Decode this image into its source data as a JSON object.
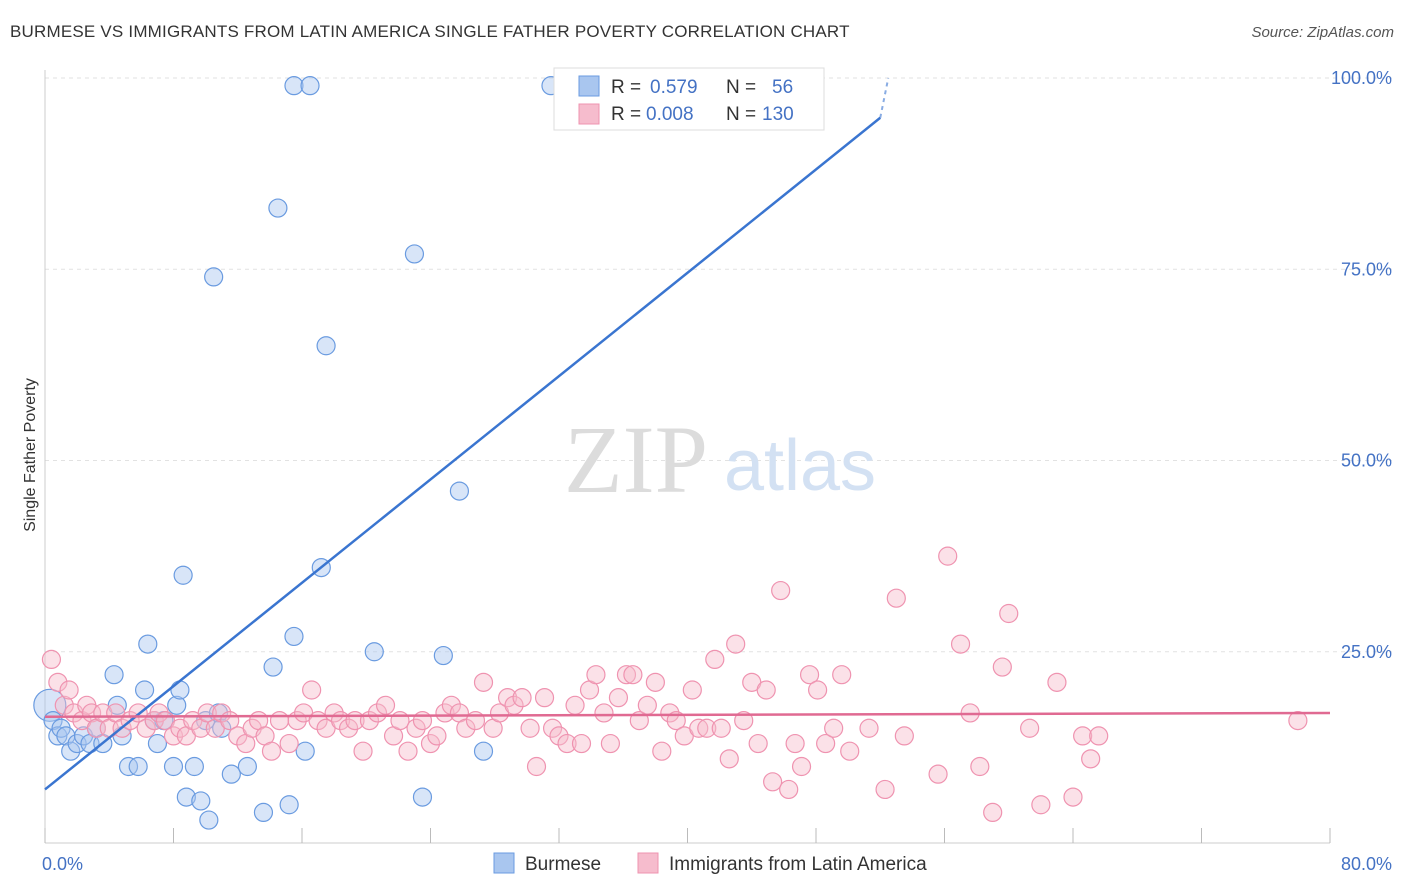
{
  "title": "BURMESE VS IMMIGRANTS FROM LATIN AMERICA SINGLE FATHER POVERTY CORRELATION CHART",
  "source": "Source: ZipAtlas.com",
  "watermark": {
    "zip": "ZIP",
    "atlas": "atlas"
  },
  "chart_data": {
    "type": "scatter",
    "ylabel": "Single Father Poverty",
    "xlim": [
      0,
      80
    ],
    "ylim": [
      0,
      105
    ],
    "x_ticks": [
      {
        "value": 0,
        "label": "0.0%"
      },
      {
        "value": 80,
        "label": "80.0%"
      }
    ],
    "x_minor_ticks": [
      0,
      8,
      16,
      24,
      32,
      40,
      48,
      56,
      64,
      72,
      80
    ],
    "y_ticks": [
      {
        "value": 25,
        "label": "25.0%"
      },
      {
        "value": 50,
        "label": "50.0%"
      },
      {
        "value": 75,
        "label": "75.0%"
      },
      {
        "value": 100,
        "label": "100.0%"
      }
    ],
    "grid": true,
    "legend_position": "bottom-center",
    "stats": [
      {
        "r_label": "R =",
        "r_value": "0.579",
        "n_label": "N =",
        "n_value": "56"
      },
      {
        "r_label": "R =",
        "r_value": "0.008",
        "n_label": "N =",
        "n_value": "130"
      }
    ],
    "series": [
      {
        "name": "Burmese",
        "color": "#6a9be0",
        "fill": "#a9c6ef",
        "trend": {
          "x0": 0,
          "y0": 7.0,
          "x1": 52,
          "y1": 94.8,
          "dash_to_x": 52.5,
          "dash_to_y": 100
        },
        "points": [
          [
            0.3,
            18
          ],
          [
            0.5,
            16
          ],
          [
            0.8,
            14
          ],
          [
            1.0,
            15
          ],
          [
            1.3,
            14
          ],
          [
            1.6,
            12
          ],
          [
            2.0,
            13
          ],
          [
            2.4,
            14
          ],
          [
            2.8,
            13
          ],
          [
            3.2,
            15
          ],
          [
            3.6,
            13
          ],
          [
            4.3,
            22
          ],
          [
            4.5,
            18
          ],
          [
            4.8,
            14
          ],
          [
            5.2,
            10
          ],
          [
            5.8,
            10
          ],
          [
            6.2,
            20
          ],
          [
            6.4,
            26
          ],
          [
            6.8,
            16
          ],
          [
            7.0,
            13
          ],
          [
            7.4,
            16
          ],
          [
            8.0,
            10
          ],
          [
            8.2,
            18
          ],
          [
            8.4,
            20
          ],
          [
            8.6,
            35
          ],
          [
            8.8,
            6
          ],
          [
            9.3,
            10
          ],
          [
            9.7,
            5.5
          ],
          [
            10.0,
            16
          ],
          [
            10.2,
            3
          ],
          [
            10.5,
            74
          ],
          [
            10.8,
            17
          ],
          [
            11.0,
            15
          ],
          [
            11.6,
            9
          ],
          [
            12.6,
            10
          ],
          [
            13.6,
            4
          ],
          [
            14.2,
            23
          ],
          [
            14.5,
            83
          ],
          [
            15.2,
            5
          ],
          [
            15.5,
            99
          ],
          [
            15.5,
            27
          ],
          [
            16.2,
            12
          ],
          [
            16.5,
            99
          ],
          [
            17.2,
            36
          ],
          [
            17.5,
            65
          ],
          [
            20.5,
            25
          ],
          [
            23.0,
            77
          ],
          [
            23.5,
            6
          ],
          [
            24.8,
            24.5
          ],
          [
            25.8,
            46
          ],
          [
            27.3,
            12
          ],
          [
            31.5,
            99
          ],
          [
            46.5,
            99
          ]
        ]
      },
      {
        "name": "Immigrants from Latin America",
        "color": "#ef93b0",
        "fill": "#f6bccd",
        "trend": {
          "x0": 0,
          "y0": 16.5,
          "x1": 80,
          "y1": 17.0
        },
        "points": [
          [
            0.4,
            24
          ],
          [
            0.8,
            21
          ],
          [
            1.2,
            18
          ],
          [
            1.5,
            20
          ],
          [
            1.8,
            17
          ],
          [
            2.3,
            16
          ],
          [
            2.6,
            18
          ],
          [
            2.9,
            17
          ],
          [
            3.2,
            15
          ],
          [
            3.6,
            17
          ],
          [
            4.0,
            15
          ],
          [
            4.4,
            17
          ],
          [
            4.8,
            15
          ],
          [
            5.3,
            16
          ],
          [
            5.8,
            17
          ],
          [
            6.3,
            15
          ],
          [
            6.8,
            16
          ],
          [
            7.1,
            17
          ],
          [
            7.5,
            16
          ],
          [
            8.0,
            14
          ],
          [
            8.4,
            15
          ],
          [
            8.8,
            14
          ],
          [
            9.2,
            16
          ],
          [
            9.7,
            15
          ],
          [
            10.1,
            17
          ],
          [
            10.6,
            15
          ],
          [
            11.0,
            17
          ],
          [
            11.5,
            16
          ],
          [
            12.0,
            14
          ],
          [
            12.5,
            13
          ],
          [
            12.9,
            15
          ],
          [
            13.3,
            16
          ],
          [
            13.7,
            14
          ],
          [
            14.1,
            12
          ],
          [
            14.6,
            16
          ],
          [
            15.2,
            13
          ],
          [
            15.7,
            16
          ],
          [
            16.1,
            17
          ],
          [
            16.6,
            20
          ],
          [
            17.0,
            16
          ],
          [
            17.5,
            15
          ],
          [
            18.0,
            17
          ],
          [
            18.4,
            16
          ],
          [
            18.9,
            15
          ],
          [
            19.3,
            16
          ],
          [
            19.8,
            12
          ],
          [
            20.2,
            16
          ],
          [
            20.7,
            17
          ],
          [
            21.2,
            18
          ],
          [
            21.7,
            14
          ],
          [
            22.1,
            16
          ],
          [
            22.6,
            12
          ],
          [
            23.1,
            15
          ],
          [
            23.5,
            16
          ],
          [
            24.0,
            13
          ],
          [
            24.4,
            14
          ],
          [
            24.9,
            17
          ],
          [
            25.3,
            18
          ],
          [
            25.8,
            17
          ],
          [
            26.2,
            15
          ],
          [
            26.8,
            16
          ],
          [
            27.3,
            21
          ],
          [
            27.9,
            15
          ],
          [
            28.3,
            17
          ],
          [
            28.8,
            19
          ],
          [
            29.2,
            18
          ],
          [
            29.7,
            19
          ],
          [
            30.2,
            15
          ],
          [
            30.6,
            10
          ],
          [
            31.1,
            19
          ],
          [
            31.6,
            15
          ],
          [
            32.0,
            14
          ],
          [
            32.5,
            13
          ],
          [
            33.0,
            18
          ],
          [
            33.4,
            13
          ],
          [
            33.9,
            20
          ],
          [
            34.3,
            22
          ],
          [
            34.8,
            17
          ],
          [
            35.2,
            13
          ],
          [
            35.7,
            19
          ],
          [
            36.2,
            22
          ],
          [
            36.6,
            22
          ],
          [
            37.0,
            16
          ],
          [
            37.5,
            18
          ],
          [
            38.0,
            21
          ],
          [
            38.4,
            12
          ],
          [
            38.9,
            17
          ],
          [
            39.3,
            16
          ],
          [
            39.8,
            14
          ],
          [
            40.3,
            20
          ],
          [
            40.7,
            15
          ],
          [
            41.2,
            15
          ],
          [
            41.7,
            24
          ],
          [
            42.1,
            15
          ],
          [
            42.6,
            11
          ],
          [
            43.0,
            26
          ],
          [
            43.5,
            16
          ],
          [
            44.0,
            21
          ],
          [
            44.4,
            13
          ],
          [
            44.9,
            20
          ],
          [
            45.3,
            8
          ],
          [
            45.8,
            33
          ],
          [
            46.3,
            7
          ],
          [
            46.7,
            13
          ],
          [
            47.1,
            10
          ],
          [
            47.6,
            22
          ],
          [
            48.1,
            20
          ],
          [
            48.6,
            13
          ],
          [
            49.1,
            15
          ],
          [
            49.6,
            22
          ],
          [
            50.1,
            12
          ],
          [
            51.3,
            15
          ],
          [
            52.3,
            7
          ],
          [
            53.0,
            32
          ],
          [
            53.5,
            14
          ],
          [
            55.6,
            9
          ],
          [
            56.2,
            37.5
          ],
          [
            57.0,
            26
          ],
          [
            57.6,
            17
          ],
          [
            58.2,
            10
          ],
          [
            59.0,
            4
          ],
          [
            59.6,
            23
          ],
          [
            60.0,
            30
          ],
          [
            61.3,
            15
          ],
          [
            62.0,
            5
          ],
          [
            63.0,
            21
          ],
          [
            64.0,
            6
          ],
          [
            64.6,
            14
          ],
          [
            65.1,
            11
          ],
          [
            65.6,
            14
          ],
          [
            78.0,
            16
          ]
        ]
      }
    ]
  }
}
